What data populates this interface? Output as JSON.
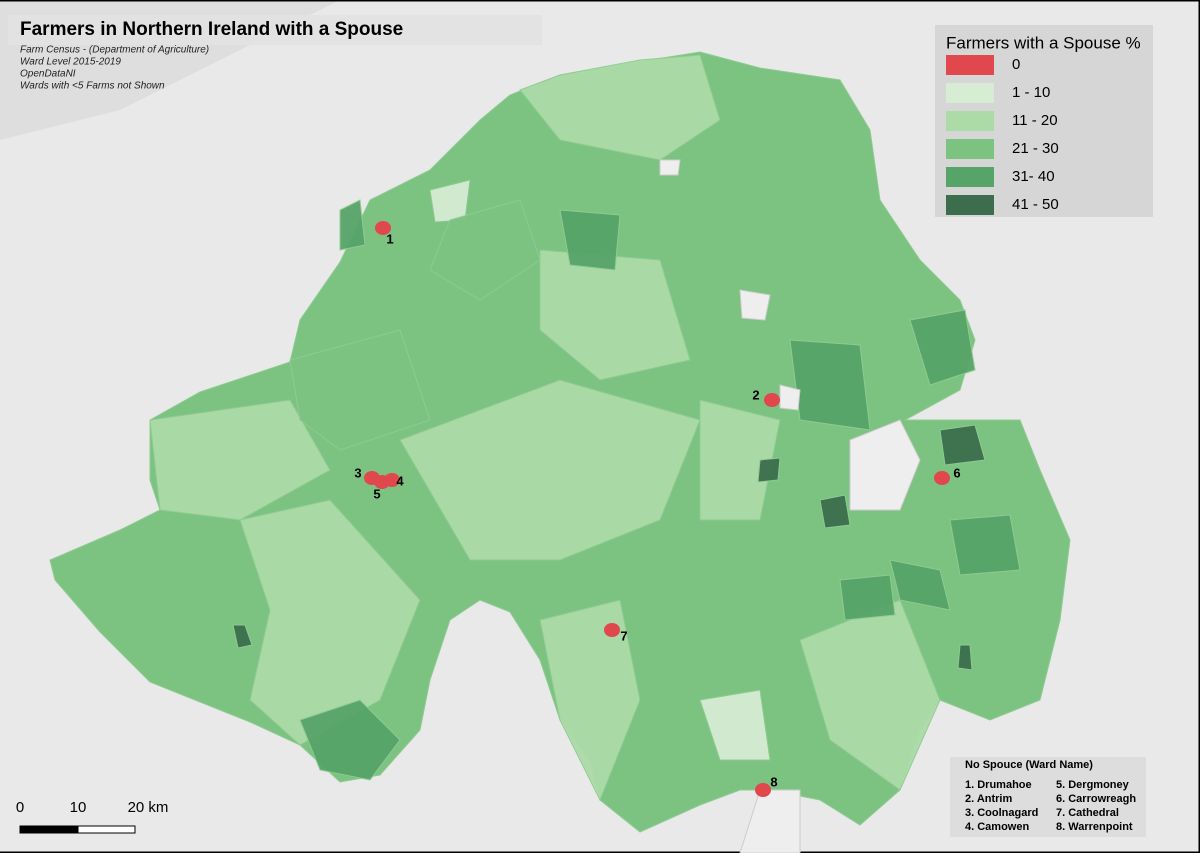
{
  "title": "Farmers in Northern Ireland with a Spouse",
  "notes": [
    "Farm Census - (Department of Agriculture)",
    "Ward Level 2015-2019",
    "OpenDataNI",
    "Wards with <5 Farms not Shown"
  ],
  "legend": {
    "title": "Farmers with a Spouse %",
    "items": [
      {
        "label": "0",
        "color": "#e0484d"
      },
      {
        "label": "1 - 10",
        "color": "#d6edd4"
      },
      {
        "label": "11 - 20",
        "color": "#acdba7"
      },
      {
        "label": "21 - 30",
        "color": "#7cc382"
      },
      {
        "label": "31- 40",
        "color": "#57a469"
      },
      {
        "label": "41 - 50",
        "color": "#3c6e4d"
      }
    ]
  },
  "markers": [
    "1",
    "2",
    "3",
    "4",
    "5",
    "6",
    "7",
    "8"
  ],
  "ward_list": {
    "title": "No Spouce (Ward Name)",
    "items": [
      "1. Drumahoe",
      "2. Antrim",
      "3. Coolnagard",
      "4. Camowen",
      "5. Dergmoney",
      "6. Carrowreagh",
      "7. Cathedral",
      "8. Warrenpoint"
    ]
  },
  "scale_bar": {
    "labels": [
      "0",
      "10",
      "20 km"
    ]
  }
}
